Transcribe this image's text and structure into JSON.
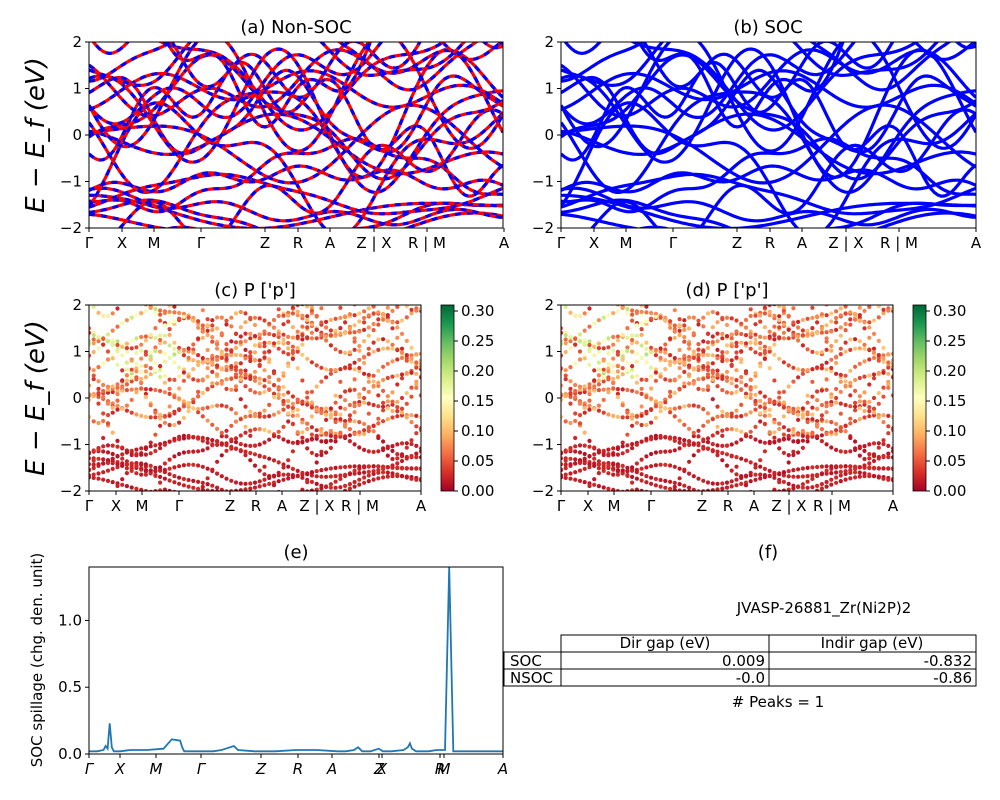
{
  "chart_data": [
    {
      "panel": "a",
      "type": "line",
      "title": "(a) Non-SOC",
      "ylabel": "E − E_f (eV)",
      "ylim": [
        -2,
        2
      ],
      "yticks": [
        "2",
        "1",
        "0",
        "−1",
        "−2"
      ],
      "xticks": [
        "Γ",
        "X",
        "M",
        "Γ",
        "Z",
        "R",
        "A",
        "Z | X",
        "R | M",
        "A"
      ],
      "series_colors": [
        "#ff0000",
        "#0000ff"
      ],
      "description_values": "electronic band structure, spin-up (red) and spin-down (blue, dashed) bands"
    },
    {
      "panel": "b",
      "type": "line",
      "title": "(b) SOC",
      "ylim": [
        -2,
        2
      ],
      "yticks": [
        "2",
        "1",
        "0",
        "−1",
        "−2"
      ],
      "xticks": [
        "Γ",
        "X",
        "M",
        "Γ",
        "Z",
        "R",
        "A",
        "Z | X",
        "R | M",
        "A"
      ],
      "series_colors": [
        "#0000ff"
      ]
    },
    {
      "panel": "c",
      "type": "scatter",
      "title": "(c)  P ['p']",
      "ylabel": "E − E_f (eV)",
      "ylim": [
        -2,
        2
      ],
      "yticks": [
        "2",
        "1",
        "0",
        "−1",
        "−2"
      ],
      "xticks": [
        "Γ",
        "X",
        "M",
        "Γ",
        "Z",
        "R",
        "A",
        "Z | X",
        "R | M",
        "A"
      ],
      "colorbar": {
        "ticks": [
          "0.30",
          "0.25",
          "0.20",
          "0.15",
          "0.10",
          "0.05",
          "0.00"
        ],
        "range": [
          0,
          0.31
        ],
        "colormap": "RdYlGn"
      }
    },
    {
      "panel": "d",
      "type": "scatter",
      "title": "(d) P ['p']",
      "ylim": [
        -2,
        2
      ],
      "yticks": [
        "2",
        "1",
        "0",
        "−1",
        "−2"
      ],
      "xticks": [
        "Γ",
        "X",
        "M",
        "Γ",
        "Z",
        "R",
        "A",
        "Z | X",
        "R | M",
        "A"
      ],
      "colorbar": {
        "ticks": [
          "0.30",
          "0.25",
          "0.20",
          "0.15",
          "0.10",
          "0.05",
          "0.00"
        ],
        "range": [
          0,
          0.31
        ],
        "colormap": "RdYlGn"
      }
    },
    {
      "panel": "e",
      "type": "line",
      "title": "(e)",
      "ylabel": "SOC spillage (chg. den. unit)",
      "ylim": [
        0,
        1.4
      ],
      "yticks": [
        "1.0",
        "0.5",
        "0.0"
      ],
      "xticks": [
        "Γ",
        "X",
        "M",
        "Γ",
        "Z",
        "R",
        "A",
        "Z",
        "X",
        "R",
        "M",
        "A"
      ],
      "series": [
        {
          "color": "#1f77b4",
          "x": [
            0,
            0.02,
            0.035,
            0.04,
            0.045,
            0.05,
            0.055,
            0.06,
            0.065,
            0.075,
            0.1,
            0.11,
            0.12,
            0.14,
            0.18,
            0.2,
            0.22,
            0.225,
            0.23,
            0.24,
            0.3,
            0.32,
            0.33,
            0.35,
            0.36,
            0.4,
            0.45,
            0.5,
            0.55,
            0.6,
            0.62,
            0.64,
            0.65,
            0.66,
            0.68,
            0.7,
            0.71,
            0.73,
            0.76,
            0.77,
            0.775,
            0.78,
            0.79,
            0.8,
            0.81,
            0.82,
            0.84,
            0.85,
            0.86,
            0.87,
            0.88,
            0.89,
            0.9,
            1.0
          ],
          "y": [
            0.02,
            0.02,
            0.03,
            0.06,
            0.04,
            0.23,
            0.05,
            0.02,
            0.02,
            0.02,
            0.03,
            0.03,
            0.03,
            0.03,
            0.04,
            0.11,
            0.1,
            0.05,
            0.02,
            0.02,
            0.02,
            0.03,
            0.04,
            0.06,
            0.03,
            0.02,
            0.02,
            0.03,
            0.03,
            0.02,
            0.02,
            0.03,
            0.05,
            0.02,
            0.02,
            0.04,
            0.02,
            0.02,
            0.03,
            0.05,
            0.08,
            0.04,
            0.02,
            0.02,
            0.02,
            0.02,
            0.03,
            0.03,
            0.03,
            1.4,
            0.02,
            0.02,
            0.02,
            0.02
          ]
        }
      ]
    }
  ],
  "panel_f": {
    "title": "(f)",
    "material": "JVASP-26881_Zr(Ni2P)2",
    "table": {
      "headers": [
        "",
        "Dir gap (eV)",
        "Indir gap (eV)"
      ],
      "rows": [
        [
          "SOC",
          "0.009",
          "-0.832"
        ],
        [
          "NSOC",
          "-0.0",
          "-0.86"
        ]
      ]
    },
    "peaks": "# Peaks = 1"
  }
}
